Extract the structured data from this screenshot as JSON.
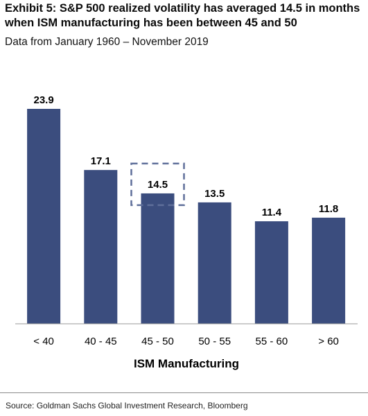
{
  "title": "Exhibit 5: S&P 500 realized volatility has averaged 14.5 in months when ISM manufacturing has been between 45 and 50",
  "subtitle": "Data from January 1960 – November 2019",
  "source": "Source: Goldman Sachs Global Investment Research, Bloomberg",
  "colors": {
    "bar": "#3b4d7e",
    "highlight_box": "#5f6f9a",
    "axis": "#9a9a9a"
  },
  "chart_data": {
    "type": "bar",
    "categories": [
      "< 40",
      "40 - 45",
      "45 - 50",
      "50 - 55",
      "55 - 60",
      "> 60"
    ],
    "values": [
      23.9,
      17.1,
      14.5,
      13.5,
      11.4,
      11.8
    ],
    "data_labels": [
      "23.9",
      "17.1",
      "14.5",
      "13.5",
      "11.4",
      "11.8"
    ],
    "title": "",
    "xlabel": "ISM Manufacturing",
    "ylabel": "",
    "ylim": [
      0,
      23.9
    ],
    "highlighted_category": "45 - 50",
    "grid": false,
    "legend": "none"
  }
}
